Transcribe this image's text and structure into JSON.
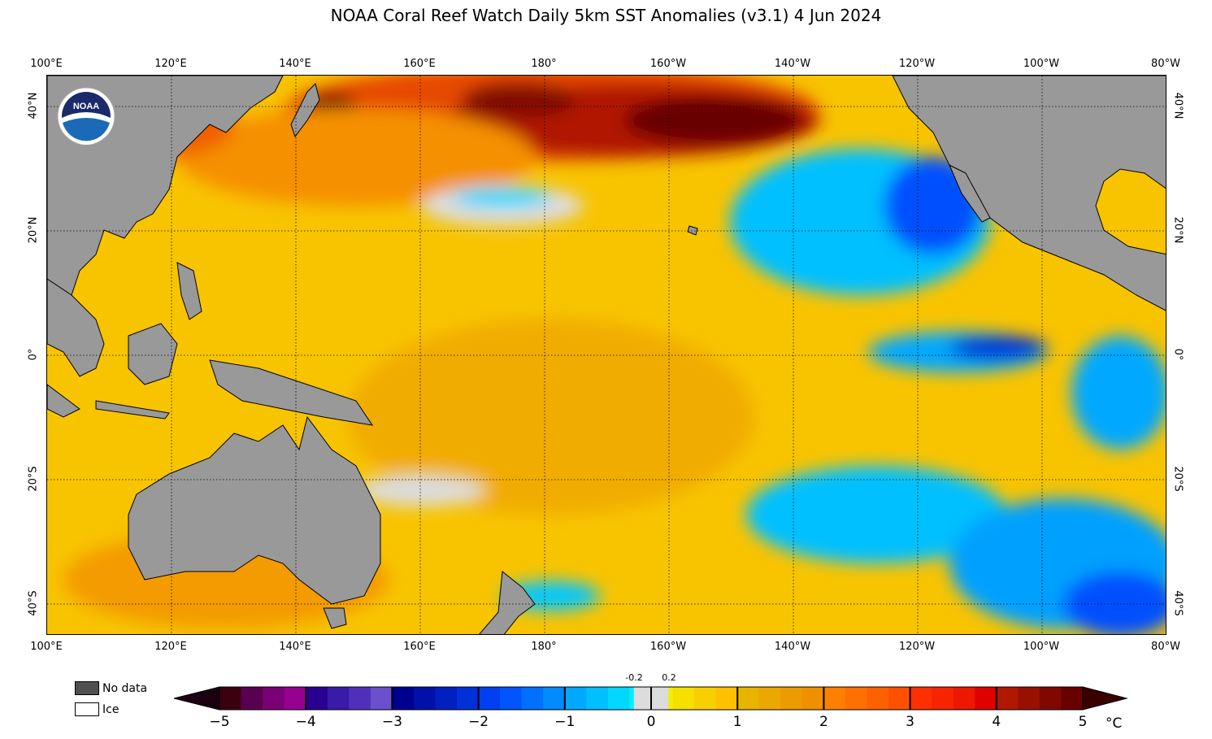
{
  "title": "NOAA Coral Reef Watch Daily 5km SST Anomalies  (v3.1)   4 Jun 2024",
  "logo": {
    "text": "NOAA",
    "icon": "noaa-logo-icon"
  },
  "lon_labels": [
    "100°E",
    "120°E",
    "140°E",
    "160°E",
    "180°",
    "160°W",
    "140°W",
    "120°W",
    "100°W",
    "80°W"
  ],
  "lat_labels": [
    "40°N",
    "20°N",
    "0°",
    "20°S",
    "40°S"
  ],
  "legend": {
    "no_data": "No data",
    "ice": "Ice",
    "no_data_color": "#505050",
    "ice_color": "#ffffff",
    "land_color": "#999999"
  },
  "colorbar": {
    "ticks": [
      "−5",
      "−4",
      "−3",
      "−2",
      "−1",
      "0",
      "1",
      "2",
      "3",
      "4",
      "5"
    ],
    "small_ticks": [
      "-0.2",
      "0.2"
    ],
    "unit": "°C",
    "segments": [
      [
        "#3b0010",
        "#5a0050",
        "#7a0075",
        "#96008f"
      ],
      [
        "#2a0090",
        "#3a1aa8",
        "#5030bb",
        "#6a50cc"
      ],
      [
        "#000090",
        "#0010a8",
        "#0020c0",
        "#0030d8"
      ],
      [
        "#0040f0",
        "#0055ff",
        "#0070ff",
        "#008cff"
      ],
      [
        "#00a8ff",
        "#00c0ff",
        "#00d8ff",
        "#00f0ff"
      ],
      [
        "#f0f000",
        "#f5e000",
        "#f8d000",
        "#ffc000"
      ],
      [
        "#e8b400",
        "#eaa800",
        "#ec9c00",
        "#ee9000"
      ],
      [
        "#ff8000",
        "#ff7000",
        "#ff6000",
        "#ff5000"
      ],
      [
        "#ff3000",
        "#f82400",
        "#ee1800",
        "#e00000"
      ],
      [
        "#b01800",
        "#981000",
        "#800800",
        "#680000"
      ]
    ],
    "neutral_color": "#dcdcdc",
    "end_low": "#1a0010",
    "end_high": "#3a0000"
  }
}
